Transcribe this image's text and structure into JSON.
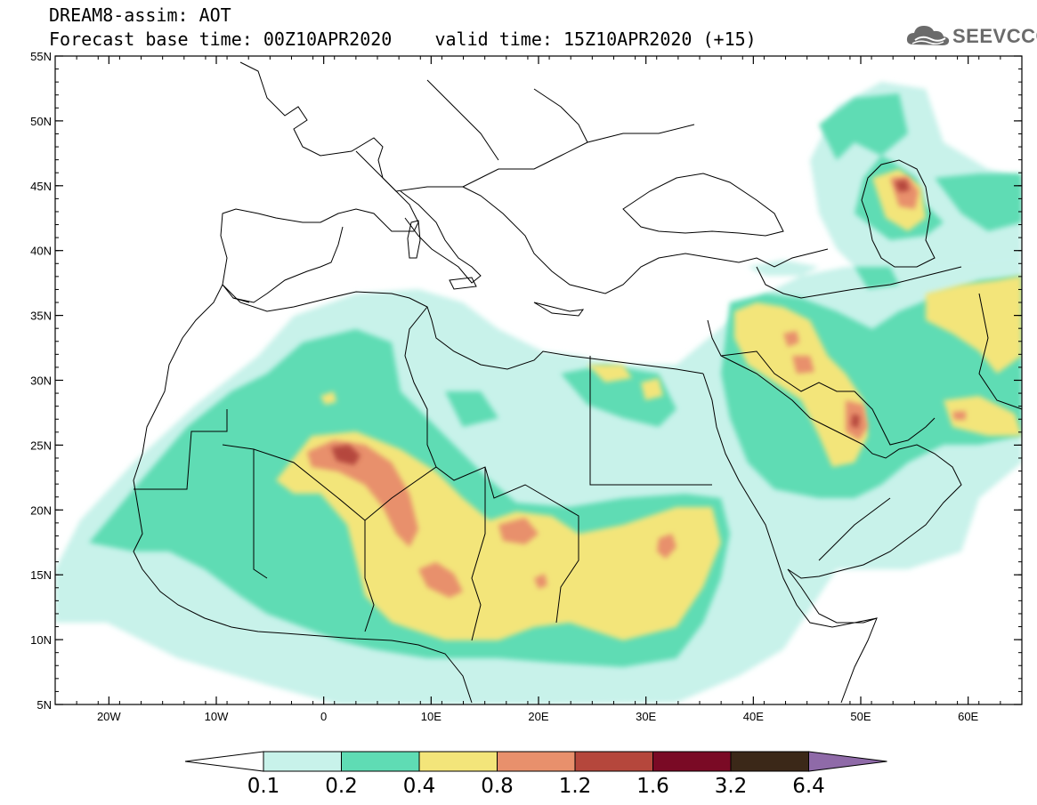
{
  "header": {
    "line1": "DREAM8-assim: AOT",
    "line2": "Forecast base time: 00Z10APR2020    valid time: 15Z10APR2020 (+15)",
    "logo_text": "SEEVCCC"
  },
  "map": {
    "lon_range": [
      -25,
      65
    ],
    "lat_range": [
      5,
      55
    ],
    "lon_ticks": [
      {
        "value": -20,
        "label": "20W"
      },
      {
        "value": -10,
        "label": "10W"
      },
      {
        "value": 0,
        "label": "0"
      },
      {
        "value": 10,
        "label": "10E"
      },
      {
        "value": 20,
        "label": "20E"
      },
      {
        "value": 30,
        "label": "30E"
      },
      {
        "value": 40,
        "label": "40E"
      },
      {
        "value": 50,
        "label": "50E"
      },
      {
        "value": 60,
        "label": "60E"
      }
    ],
    "lat_ticks": [
      {
        "value": 55,
        "label": "55N"
      },
      {
        "value": 50,
        "label": "50N"
      },
      {
        "value": 45,
        "label": "45N"
      },
      {
        "value": 40,
        "label": "40N"
      },
      {
        "value": 35,
        "label": "35N"
      },
      {
        "value": 30,
        "label": "30N"
      },
      {
        "value": 25,
        "label": "25N"
      },
      {
        "value": 20,
        "label": "20N"
      },
      {
        "value": 15,
        "label": "15N"
      },
      {
        "value": 10,
        "label": "10N"
      },
      {
        "value": 5,
        "label": "5N"
      }
    ]
  },
  "colorbar": {
    "colors": [
      "#c8f2ea",
      "#5fdcb4",
      "#f3e57a",
      "#e8906c",
      "#b5473c",
      "#7a0a25",
      "#3b2818",
      "#8f6aa8"
    ],
    "labels": [
      "0.1",
      "0.2",
      "0.4",
      "0.8",
      "1.2",
      "1.6",
      "3.2",
      "6.4"
    ]
  }
}
